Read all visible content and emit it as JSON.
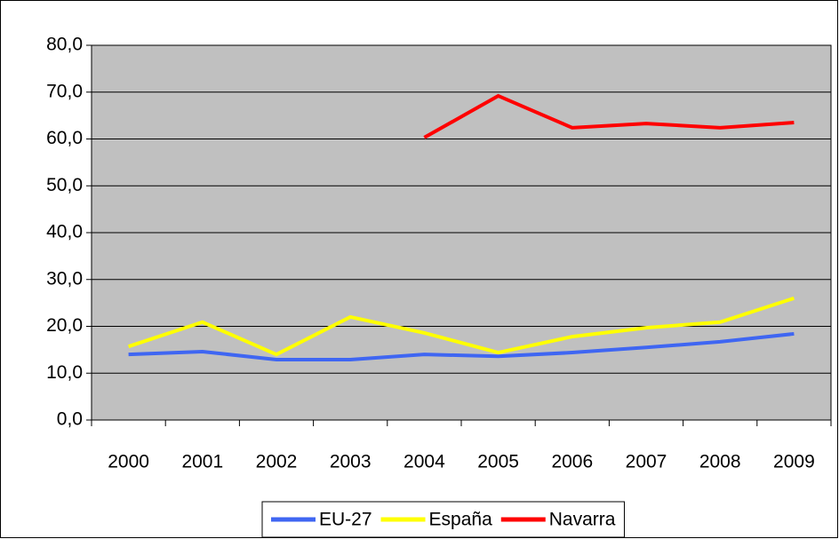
{
  "chart_data": {
    "type": "line",
    "categories": [
      "2000",
      "2001",
      "2002",
      "2003",
      "2004",
      "2005",
      "2006",
      "2007",
      "2008",
      "2009"
    ],
    "series": [
      {
        "name": "EU-27",
        "color": "#3f66f2",
        "values": [
          14.0,
          14.6,
          12.9,
          12.9,
          14.0,
          13.6,
          14.4,
          15.5,
          16.7,
          18.4
        ]
      },
      {
        "name": "España",
        "color": "#ffff00",
        "values": [
          15.7,
          20.9,
          14.0,
          22.0,
          18.6,
          14.4,
          17.8,
          19.7,
          20.9,
          26.0
        ]
      },
      {
        "name": "Navarra",
        "color": "#ff0000",
        "values": [
          null,
          null,
          null,
          null,
          60.3,
          69.2,
          62.4,
          63.3,
          62.4,
          63.5
        ]
      }
    ],
    "ylim": [
      0,
      80
    ],
    "yticks": [
      {
        "value": 0,
        "label": "0,0"
      },
      {
        "value": 10,
        "label": "10,0"
      },
      {
        "value": 20,
        "label": "20,0"
      },
      {
        "value": 30,
        "label": "30,0"
      },
      {
        "value": 40,
        "label": "40,0"
      },
      {
        "value": 50,
        "label": "50,0"
      },
      {
        "value": 60,
        "label": "60,0"
      },
      {
        "value": 70,
        "label": "70,0"
      },
      {
        "value": 80,
        "label": "80,0"
      }
    ],
    "grid": true,
    "legend": "bottom"
  }
}
